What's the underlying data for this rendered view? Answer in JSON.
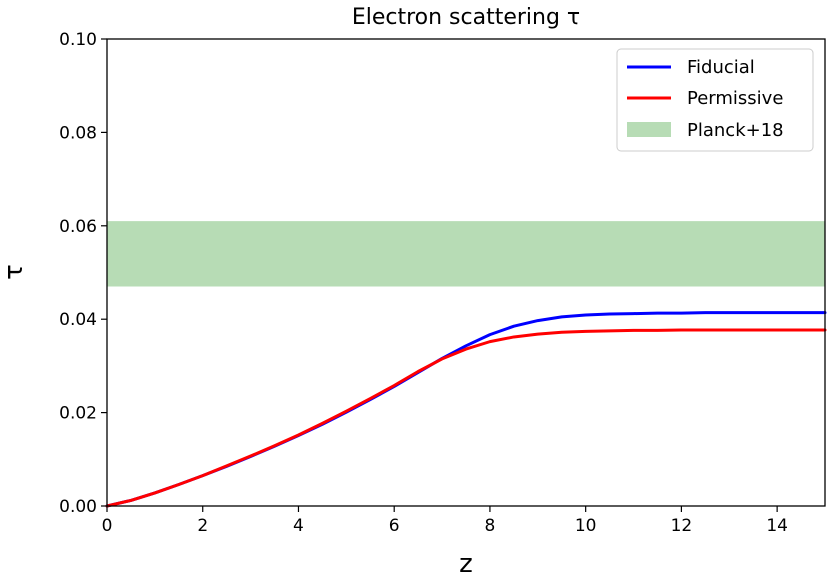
{
  "chart_data": {
    "type": "line",
    "title": "Electron scattering τ",
    "xlabel": "z",
    "ylabel": "τ",
    "xlim": [
      0,
      15
    ],
    "ylim": [
      0,
      0.1
    ],
    "x_ticks": [
      "0",
      "2",
      "4",
      "6",
      "8",
      "10",
      "12",
      "14"
    ],
    "y_ticks": [
      "0.00",
      "0.02",
      "0.04",
      "0.06",
      "0.08",
      "0.10"
    ],
    "grid": false,
    "legend_position": "top-right",
    "band": {
      "name": "Planck+18",
      "y_low": 0.047,
      "y_high": 0.061,
      "color": "#b7dcb5"
    },
    "x": [
      0,
      0.5,
      1,
      1.5,
      2,
      2.5,
      3,
      3.5,
      4,
      4.5,
      5,
      5.5,
      6,
      6.5,
      7,
      7.5,
      8,
      8.5,
      9,
      9.5,
      10,
      10.5,
      11,
      11.5,
      12,
      12.5,
      13,
      13.5,
      14,
      14.5,
      15
    ],
    "series": [
      {
        "name": "Fiducial",
        "color": "#0000ff",
        "values": [
          0,
          0.0012,
          0.0028,
          0.0046,
          0.0065,
          0.0085,
          0.0106,
          0.0128,
          0.0151,
          0.0175,
          0.0201,
          0.0228,
          0.0256,
          0.0286,
          0.0316,
          0.0343,
          0.0367,
          0.0385,
          0.0397,
          0.0405,
          0.0409,
          0.0411,
          0.0412,
          0.0413,
          0.0413,
          0.0414,
          0.0414,
          0.0414,
          0.0414,
          0.0414,
          0.0414
        ]
      },
      {
        "name": "Permissive",
        "color": "#ff0000",
        "values": [
          0,
          0.0012,
          0.0028,
          0.0046,
          0.0065,
          0.0086,
          0.0107,
          0.0129,
          0.0152,
          0.0177,
          0.0203,
          0.023,
          0.0258,
          0.0288,
          0.0315,
          0.0336,
          0.0352,
          0.0362,
          0.0368,
          0.0372,
          0.0374,
          0.0375,
          0.0376,
          0.0376,
          0.0377,
          0.0377,
          0.0377,
          0.0377,
          0.0377,
          0.0377,
          0.0377
        ]
      }
    ]
  }
}
